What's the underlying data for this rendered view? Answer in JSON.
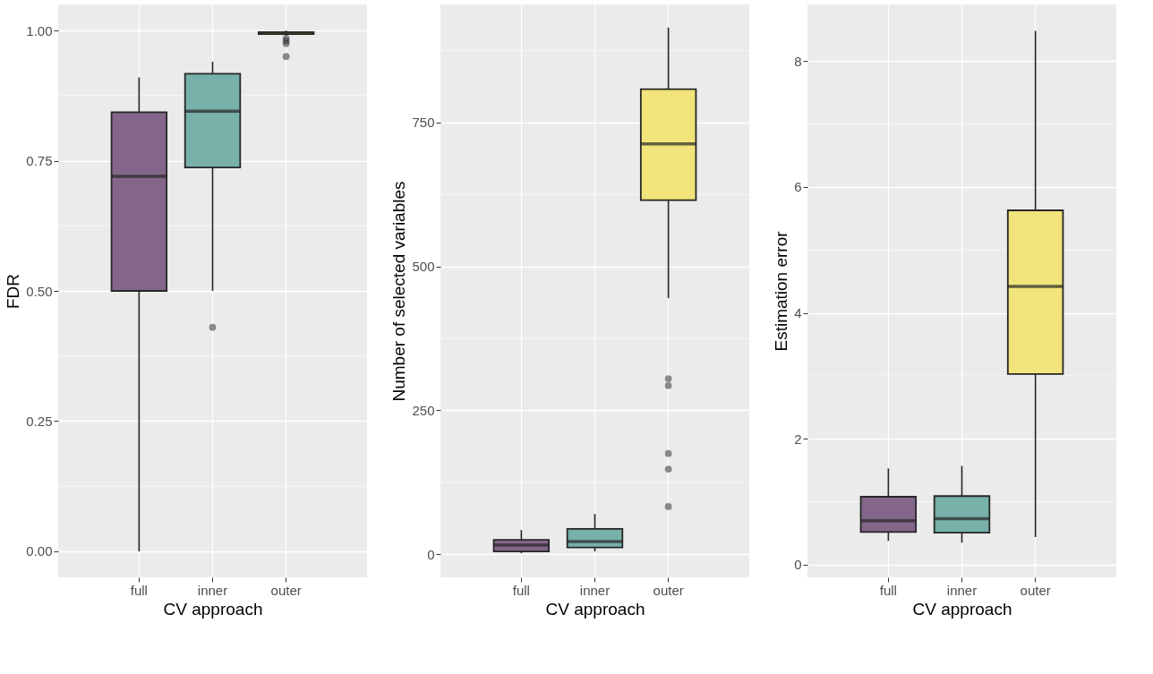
{
  "chart_data": [
    {
      "type": "box",
      "xlabel": "CV approach",
      "ylabel": "FDR",
      "categories": [
        "full",
        "inner",
        "outer"
      ],
      "colors": [
        "#83668a",
        "#78b0aa",
        "#f0e47a"
      ],
      "grid": true,
      "ylim": [
        -0.05,
        1.05
      ],
      "yticks": [
        {
          "value": 0,
          "label": "0.00"
        },
        {
          "value": 0.25,
          "label": "0.25"
        },
        {
          "value": 0.5,
          "label": "0.50"
        },
        {
          "value": 0.75,
          "label": "0.75"
        },
        {
          "value": 1,
          "label": "1.00"
        }
      ],
      "boxes": [
        {
          "low": 0.0,
          "q1": 0.5,
          "median": 0.72,
          "q3": 0.843,
          "high": 0.91
        },
        {
          "low": 0.5,
          "q1": 0.737,
          "median": 0.845,
          "q3": 0.917,
          "high": 0.94,
          "outliers": [
            0.43
          ]
        },
        {
          "low": 0.99,
          "q1": 0.993,
          "median": 0.995,
          "q3": 0.997,
          "high": 1.0,
          "outliers": [
            0.985,
            0.98,
            0.975,
            0.95
          ]
        }
      ]
    },
    {
      "type": "box",
      "xlabel": "CV approach",
      "ylabel": "Number of selected variables",
      "categories": [
        "full",
        "inner",
        "outer"
      ],
      "colors": [
        "#83668a",
        "#78b0aa",
        "#f0e47a"
      ],
      "grid": true,
      "ylim": [
        -40,
        955
      ],
      "yticks": [
        0,
        250,
        500,
        750
      ],
      "boxes": [
        {
          "low": 2,
          "q1": 5,
          "median": 16,
          "q3": 25,
          "high": 42
        },
        {
          "low": 5,
          "q1": 12,
          "median": 22,
          "q3": 44,
          "high": 70
        },
        {
          "low": 445,
          "q1": 615,
          "median": 713,
          "q3": 808,
          "high": 915,
          "outliers": [
            305,
            293,
            175,
            148,
            83
          ]
        }
      ]
    },
    {
      "type": "box",
      "xlabel": "CV approach",
      "ylabel": "Estimation error",
      "categories": [
        "full",
        "inner",
        "outer"
      ],
      "colors": [
        "#83668a",
        "#78b0aa",
        "#f0e47a"
      ],
      "grid": true,
      "ylim": [
        -0.2,
        8.9
      ],
      "yticks": [
        0,
        2,
        4,
        6,
        8
      ],
      "boxes": [
        {
          "low": 0.38,
          "q1": 0.52,
          "median": 0.7,
          "q3": 1.08,
          "high": 1.53
        },
        {
          "low": 0.35,
          "q1": 0.51,
          "median": 0.73,
          "q3": 1.09,
          "high": 1.57
        },
        {
          "low": 0.44,
          "q1": 3.03,
          "median": 4.42,
          "q3": 5.63,
          "high": 8.48
        }
      ]
    }
  ]
}
